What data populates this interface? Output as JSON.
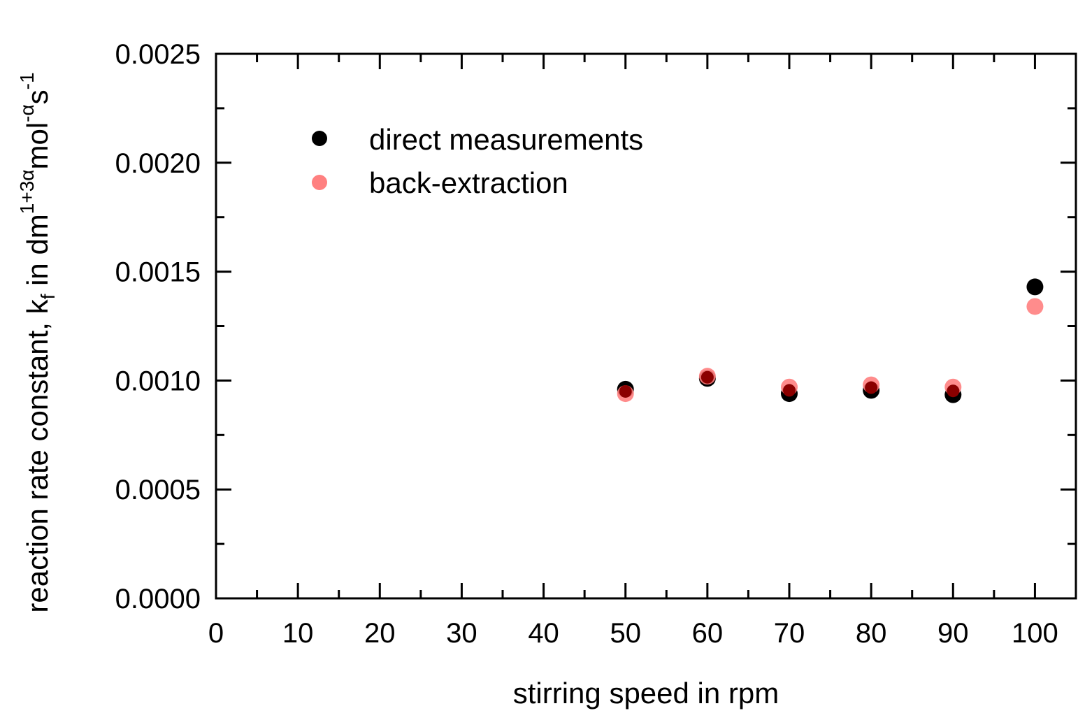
{
  "chart_data": {
    "type": "scatter",
    "xlabel": "stirring speed in rpm",
    "ylabel": {
      "parts": [
        {
          "text": "reaction rate constant, k",
          "shift": "normal"
        },
        {
          "text": "f",
          "shift": "sub"
        },
        {
          "text": " in dm",
          "shift": "normal"
        },
        {
          "text": "1+3α",
          "shift": "super"
        },
        {
          "text": "mol",
          "shift": "normal"
        },
        {
          "text": "-α",
          "shift": "super"
        },
        {
          "text": "s",
          "shift": "normal"
        },
        {
          "text": "-1",
          "shift": "super"
        }
      ]
    },
    "xlim": [
      0,
      105
    ],
    "ylim": [
      0,
      0.0025
    ],
    "xticks": [
      0,
      10,
      20,
      30,
      40,
      50,
      60,
      70,
      80,
      90,
      100
    ],
    "xtick_labels": [
      "0",
      "10",
      "20",
      "30",
      "40",
      "50",
      "60",
      "70",
      "80",
      "90",
      "100"
    ],
    "xminor": [
      5,
      15,
      25,
      35,
      45,
      55,
      65,
      75,
      85,
      95
    ],
    "yticks": [
      0,
      0.0005,
      0.001,
      0.0015,
      0.002,
      0.0025
    ],
    "ytick_labels": [
      "0.0000",
      "0.0005",
      "0.0010",
      "0.0015",
      "0.0020",
      "0.0025"
    ],
    "yminor": [
      0.00025,
      0.00075,
      0.00125,
      0.00175,
      0.00225
    ],
    "grid": false,
    "legend_position": "top-left",
    "series": [
      {
        "name": "direct measurements",
        "color": "#000000",
        "x": [
          50,
          60,
          70,
          80,
          90,
          100
        ],
        "y": [
          0.00096,
          0.00101,
          0.00094,
          0.000955,
          0.000935,
          0.00143
        ]
      },
      {
        "name": "back-extraction",
        "color": "#ff8080",
        "x": [
          50,
          60,
          70,
          80,
          90,
          100
        ],
        "y": [
          0.00094,
          0.00102,
          0.00097,
          0.00098,
          0.00097,
          0.00134
        ]
      }
    ],
    "overlap_color": "#8b0000"
  }
}
